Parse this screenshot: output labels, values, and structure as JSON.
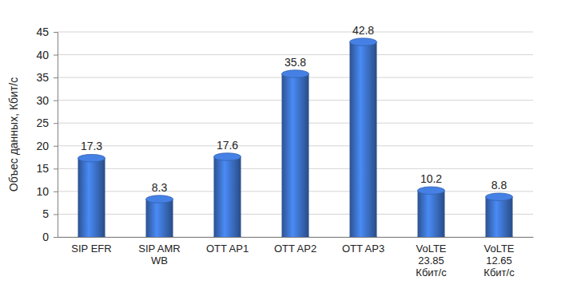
{
  "chart_data": {
    "type": "bar",
    "y_label": "Объес данных, Кбит/с",
    "categories": [
      "SIP EFR",
      "SIP AMR WB",
      "OTT AP1",
      "OTT AP2",
      "OTT AP3",
      "VoLTE 23.85 Кбит/с",
      "VoLTE 12.65 Кбит/с"
    ],
    "values": [
      17.3,
      8.3,
      17.6,
      35.8,
      42.8,
      10.2,
      8.8
    ],
    "color": "#3a6cc0",
    "ylim": [
      0,
      45
    ],
    "yticks": [
      0,
      5,
      10,
      15,
      20,
      25,
      30,
      35,
      40,
      45
    ],
    "grid": true,
    "data_labels": true
  }
}
